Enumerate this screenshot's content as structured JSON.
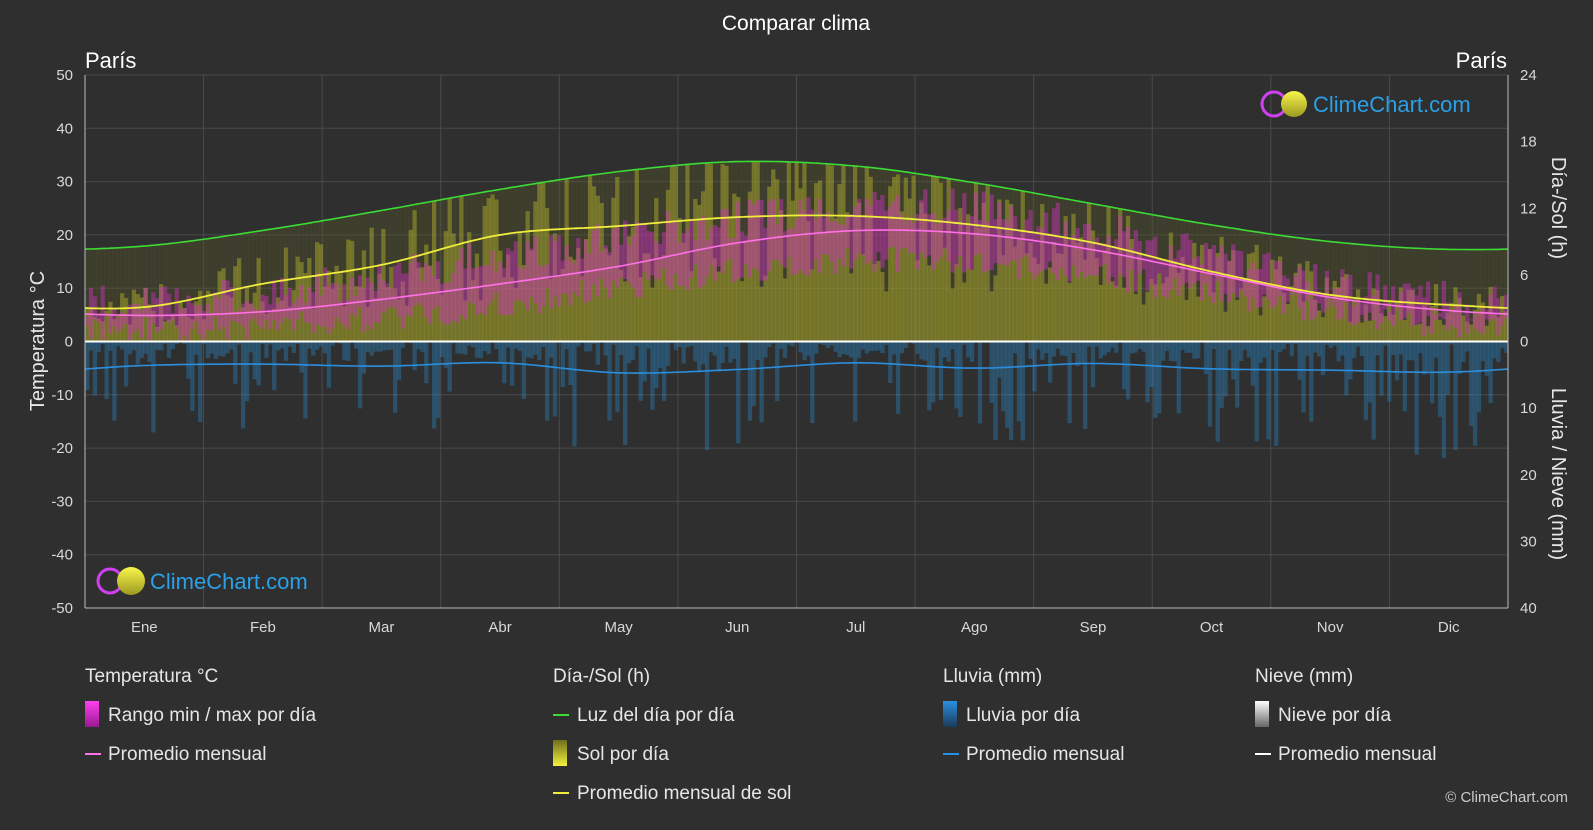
{
  "title": "Comparar clima",
  "location_left": "París",
  "location_right": "París",
  "brand": "ClimeChart.com",
  "copyright": "© ClimeChart.com",
  "colors": {
    "background": "#2f2f2f",
    "daylight": "#3ddc34",
    "sunshine_avg": "#f0ee3c",
    "sunshine_fill": "#b7b52a",
    "temp_avg": "#ff70e6",
    "temp_range": "#d030c0",
    "rain": "#2b8fd6",
    "rain_avg": "#2b8fe0",
    "snow_avg": "#ffffff",
    "brand_text": "#2aa0e8"
  },
  "legend": {
    "temperature": {
      "title": "Temperatura °C",
      "range": "Rango min / max por día",
      "avg": "Promedio mensual"
    },
    "daysun": {
      "title": "Día-/Sol (h)",
      "daylight": "Luz del día por día",
      "sun": "Sol por día",
      "sun_avg": "Promedio mensual de sol"
    },
    "rain": {
      "title": "Lluvia (mm)",
      "rain": "Lluvia por día",
      "avg": "Promedio mensual"
    },
    "snow": {
      "title": "Nieve (mm)",
      "snow": "Nieve por día",
      "avg": "Promedio mensual"
    }
  },
  "chart_data": {
    "type": "area",
    "x": [
      "Ene",
      "Feb",
      "Mar",
      "Abr",
      "May",
      "Jun",
      "Jul",
      "Ago",
      "Sep",
      "Oct",
      "Nov",
      "Dic"
    ],
    "y_left": {
      "label": "Temperatura °C",
      "range": [
        -50,
        50
      ],
      "ticks": [
        50,
        40,
        30,
        20,
        10,
        0,
        -10,
        -20,
        -30,
        -40,
        -50
      ]
    },
    "y_right_top": {
      "label": "Día-/Sol (h)",
      "range": [
        0,
        24
      ],
      "ticks": [
        24,
        18,
        12,
        6,
        0
      ]
    },
    "y_right_bottom": {
      "label": "Lluvia / Nieve (mm)",
      "range": [
        0,
        40
      ],
      "ticks": [
        0,
        10,
        20,
        30,
        40
      ]
    },
    "grid": true,
    "series": [
      {
        "name": "Luz del día por día",
        "unit": "h",
        "values": [
          8.6,
          10.0,
          11.8,
          13.7,
          15.3,
          16.2,
          15.8,
          14.3,
          12.4,
          10.5,
          9.0,
          8.3
        ]
      },
      {
        "name": "Promedio mensual de sol",
        "unit": "h",
        "values": [
          3.1,
          5.2,
          6.9,
          9.6,
          10.4,
          11.2,
          11.3,
          10.5,
          8.9,
          6.3,
          4.2,
          3.3
        ]
      },
      {
        "name": "Promedio mensual",
        "unit": "°C",
        "values": [
          4.9,
          5.6,
          7.9,
          10.8,
          14.1,
          18.5,
          20.8,
          20.2,
          17.2,
          12.7,
          8.3,
          5.8
        ]
      },
      {
        "name": "Promedio mensual lluvia",
        "unit": "mm",
        "values": [
          3.6,
          3.4,
          3.7,
          3.2,
          4.7,
          4.2,
          3.2,
          4.0,
          3.3,
          4.1,
          4.3,
          4.6
        ]
      },
      {
        "name": "Promedio mensual nieve",
        "unit": "mm",
        "values": [
          0,
          0,
          0,
          0,
          0,
          0,
          0,
          0,
          0,
          0,
          0,
          0
        ]
      }
    ],
    "temp_range": {
      "min": [
        2.5,
        2.8,
        4.6,
        6.8,
        10.2,
        13.3,
        15.3,
        15.0,
        12.3,
        9.1,
        5.4,
        3.2
      ],
      "max": [
        7.5,
        8.8,
        12.5,
        16.0,
        19.6,
        23.0,
        25.3,
        25.0,
        21.2,
        16.2,
        10.8,
        7.8
      ]
    },
    "legend_position": "bottom"
  }
}
